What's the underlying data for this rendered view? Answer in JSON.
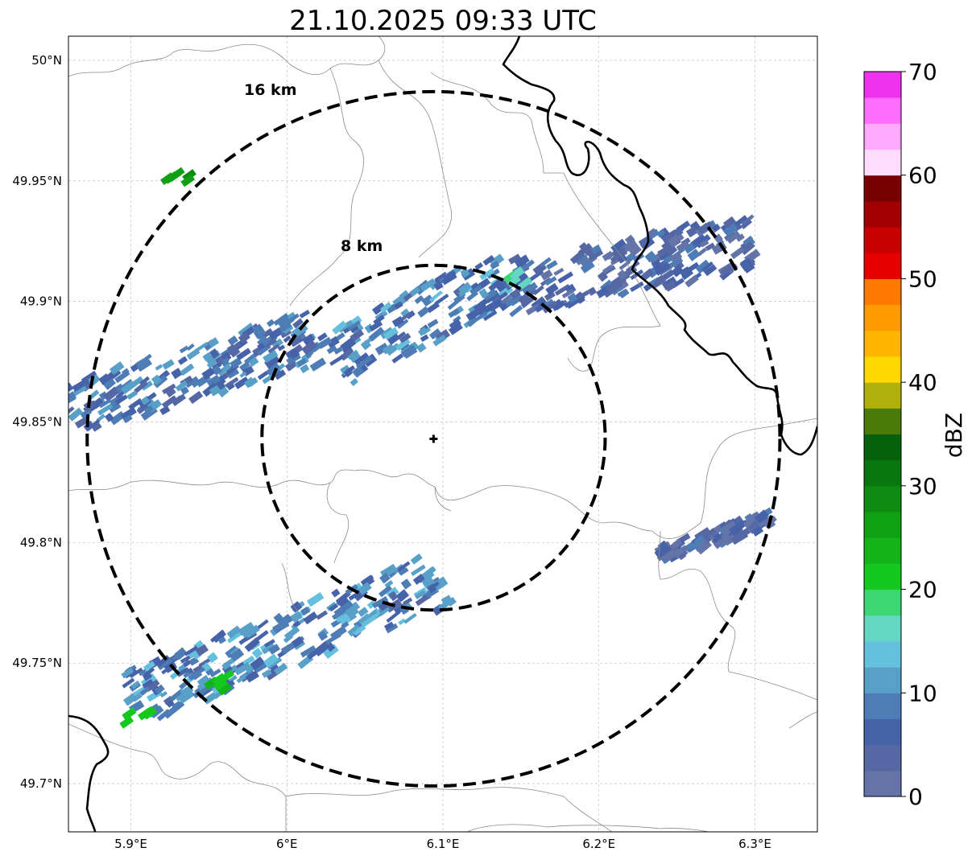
{
  "title": "21.10.2025 09:33 UTC",
  "map": {
    "lon_range": [
      5.86,
      6.34
    ],
    "lat_range": [
      49.68,
      50.01
    ],
    "xticks": [
      {
        "value": 5.9,
        "label": "5.9°E"
      },
      {
        "value": 6.0,
        "label": "6°E"
      },
      {
        "value": 6.1,
        "label": "6.1°E"
      },
      {
        "value": 6.2,
        "label": "6.2°E"
      },
      {
        "value": 6.3,
        "label": "6.3°E"
      }
    ],
    "yticks": [
      {
        "value": 49.7,
        "label": "49.7°N"
      },
      {
        "value": 49.75,
        "label": "49.75°N"
      },
      {
        "value": 49.8,
        "label": "49.8°N"
      },
      {
        "value": 49.85,
        "label": "49.85°N"
      },
      {
        "value": 49.9,
        "label": "49.9°N"
      },
      {
        "value": 49.95,
        "label": "49.95°N"
      },
      {
        "value": 50.0,
        "label": "50°N"
      }
    ],
    "grid": true,
    "radar_site": {
      "lon": 6.094,
      "lat": 49.843
    },
    "range_rings": [
      {
        "label": "8 km",
        "lat_extent": [
          49.772,
          49.915
        ],
        "lon_extent": [
          5.984,
          6.204
        ]
      },
      {
        "label": "16 km",
        "lat_extent": [
          49.699,
          49.987
        ],
        "lon_extent": [
          5.872,
          6.316
        ]
      }
    ],
    "echo_bands": [
      {
        "from": [
          5.86,
          49.855
        ],
        "to": [
          6.02,
          49.885
        ],
        "dbz": 8
      },
      {
        "from": [
          6.03,
          49.875
        ],
        "to": [
          6.14,
          49.91
        ],
        "dbz": 9
      },
      {
        "from": [
          6.14,
          49.905
        ],
        "to": [
          6.3,
          49.925
        ],
        "dbz": 5
      },
      {
        "from": [
          5.9,
          49.735
        ],
        "to": [
          6.1,
          49.785
        ],
        "dbz": 9
      },
      {
        "from": [
          6.24,
          49.795
        ],
        "to": [
          6.31,
          49.81
        ],
        "dbz": 4
      }
    ],
    "echo_cores": [
      {
        "lon": 5.955,
        "lat": 49.742,
        "dbz": 22
      },
      {
        "lon": 5.905,
        "lat": 49.728,
        "dbz": 21
      },
      {
        "lon": 6.15,
        "lat": 49.91,
        "dbz": 16
      },
      {
        "lon": 5.93,
        "lat": 49.952,
        "dbz": 28
      }
    ]
  },
  "colorbar": {
    "label": "dBZ",
    "min": 0,
    "max": 70,
    "ticks": [
      "0",
      "10",
      "20",
      "30",
      "40",
      "50",
      "60",
      "70"
    ],
    "colors": [
      "#6474a8",
      "#5668a4",
      "#4662a8",
      "#4e7cb4",
      "#58a0c8",
      "#64c0dc",
      "#64d6c4",
      "#3cd672",
      "#14c81e",
      "#12b41a",
      "#0fa014",
      "#0e8c12",
      "#0a7610",
      "#06620a",
      "#4a7a0a",
      "#b0b00a",
      "#ffd800",
      "#ffb400",
      "#ff9a00",
      "#ff7a00",
      "#e60000",
      "#c80000",
      "#a00000",
      "#780000",
      "#ffdcff",
      "#ffaaff",
      "#ff6eff",
      "#ee32ee"
    ]
  }
}
